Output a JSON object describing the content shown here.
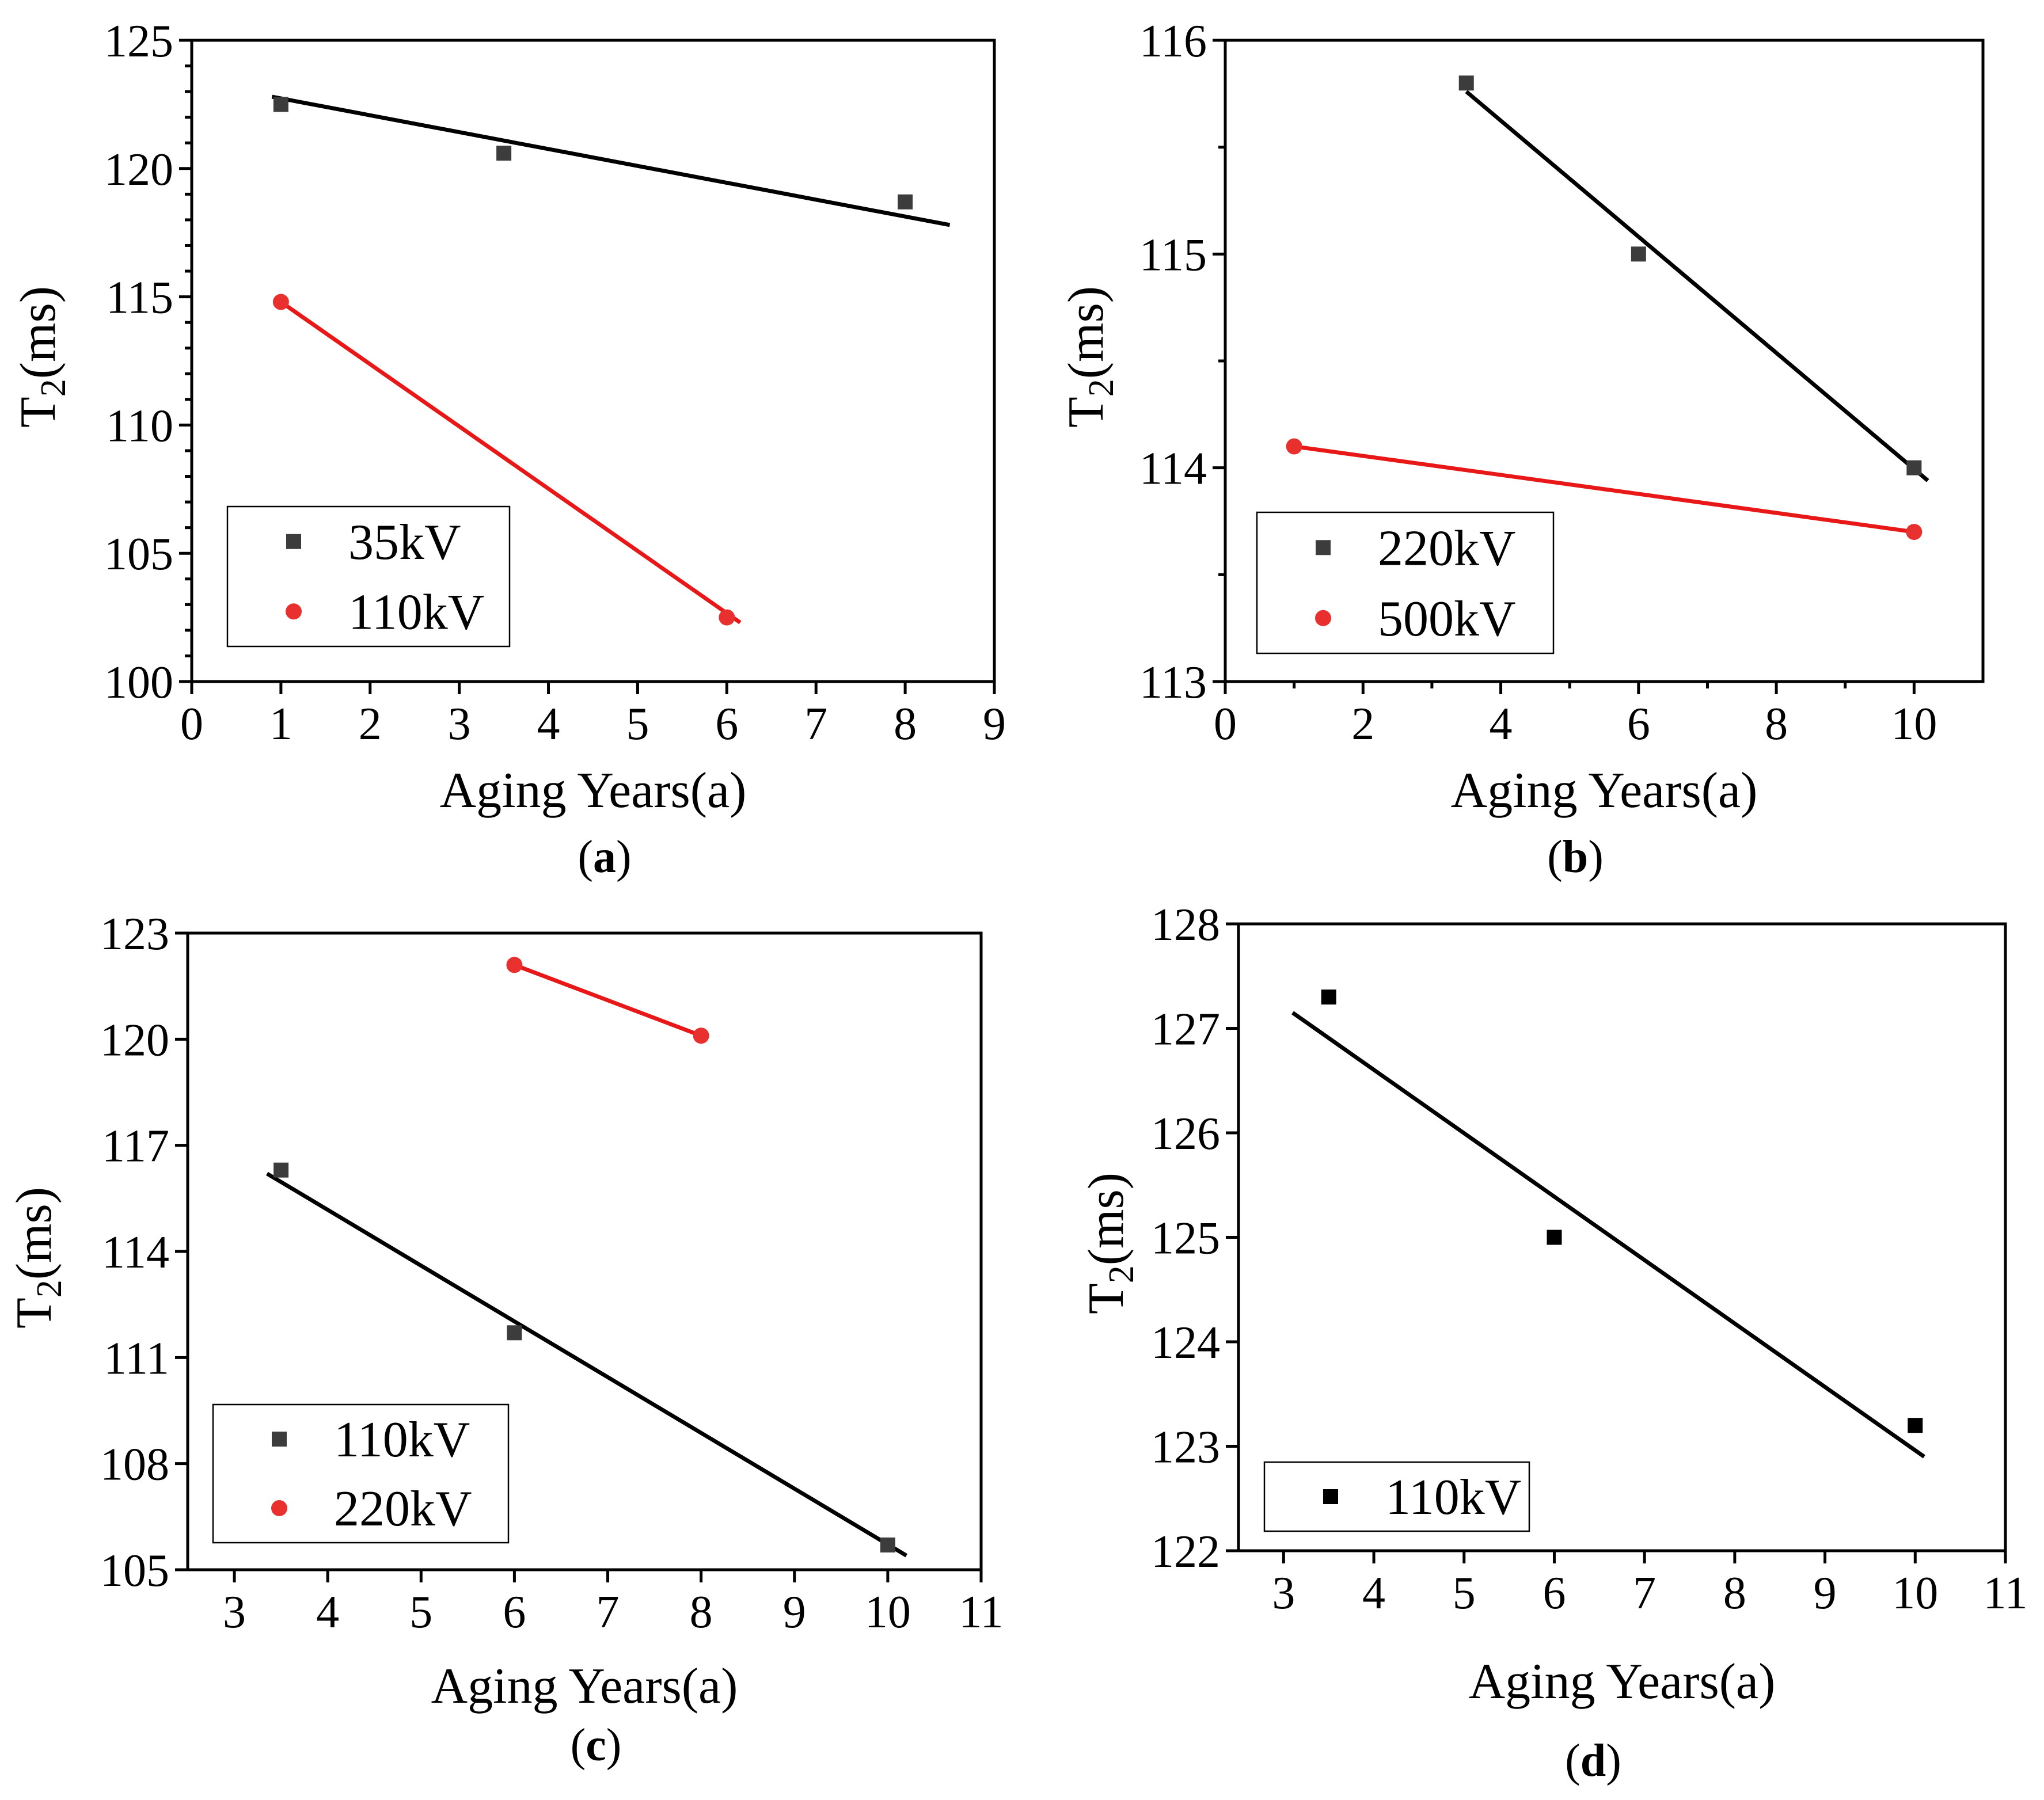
{
  "colors": {
    "black_series": "#3c3c3c",
    "red_series": "#e8302f",
    "fit_black": "#000000",
    "fit_red": "#e81818",
    "axis": "#000000"
  },
  "chart_data": [
    {
      "panel": "a",
      "panel_label": "a",
      "type": "scatter",
      "xlabel": "Aging Years(a)",
      "ylabel_main": "T",
      "ylabel_sub": "2",
      "ylabel_rest": "(ms)",
      "xlim": [
        0,
        9
      ],
      "ylim": [
        100,
        125
      ],
      "xticks": [
        0,
        1,
        2,
        3,
        4,
        5,
        6,
        7,
        8,
        9
      ],
      "yticks": [
        100,
        105,
        110,
        115,
        120,
        125
      ],
      "x_minor": 0,
      "y_minor": 5,
      "legend_position": "bottom-left",
      "series": [
        {
          "name": "35kV",
          "marker": "square",
          "color": "#3c3c3c",
          "x": [
            1,
            3.5,
            8
          ],
          "y": [
            122.5,
            120.6,
            118.7
          ],
          "fit": {
            "x": [
              0.9,
              8.5
            ],
            "y": [
              122.8,
              117.8
            ],
            "color": "#000000"
          }
        },
        {
          "name": "110kV",
          "marker": "circle",
          "color": "#e8302f",
          "x": [
            1,
            6
          ],
          "y": [
            114.8,
            102.5
          ],
          "fit": {
            "x": [
              1,
              6.15
            ],
            "y": [
              114.8,
              102.3
            ],
            "color": "#e81818"
          }
        }
      ]
    },
    {
      "panel": "b",
      "panel_label": "b",
      "type": "scatter",
      "xlabel": "Aging Years(a)",
      "ylabel_main": "T",
      "ylabel_sub": "2",
      "ylabel_rest": "(ms)",
      "xlim": [
        0,
        11
      ],
      "ylim": [
        113,
        116
      ],
      "xticks": [
        0,
        2,
        4,
        6,
        8,
        10
      ],
      "yticks": [
        113,
        114,
        115,
        116
      ],
      "x_minor": 2,
      "y_minor": 2,
      "legend_position": "bottom-left",
      "series": [
        {
          "name": "220kV",
          "marker": "square",
          "color": "#3c3c3c",
          "x": [
            3.5,
            6,
            10
          ],
          "y": [
            115.8,
            115.0,
            114.0
          ],
          "fit": {
            "x": [
              3.5,
              10.2
            ],
            "y": [
              115.76,
              113.94
            ],
            "color": "#000000"
          }
        },
        {
          "name": "500kV",
          "marker": "circle",
          "color": "#e8302f",
          "x": [
            1,
            10
          ],
          "y": [
            114.1,
            113.7
          ],
          "fit": {
            "x": [
              1,
              10
            ],
            "y": [
              114.1,
              113.7
            ],
            "color": "#e81818"
          }
        }
      ]
    },
    {
      "panel": "c",
      "panel_label": "c",
      "type": "scatter",
      "xlabel": "Aging Years(a)",
      "ylabel_main": "T",
      "ylabel_sub": "2",
      "ylabel_rest": "(ms)",
      "xlim": [
        2.5,
        11
      ],
      "ylim": [
        105,
        123
      ],
      "xticks": [
        3,
        4,
        5,
        6,
        7,
        8,
        9,
        10,
        11
      ],
      "yticks": [
        105,
        108,
        111,
        114,
        117,
        120,
        123
      ],
      "x_minor": 0,
      "y_minor": 0,
      "legend_position": "bottom-left",
      "series": [
        {
          "name": "110kV",
          "marker": "square",
          "color": "#3c3c3c",
          "x": [
            3.5,
            6,
            10
          ],
          "y": [
            116.3,
            111.7,
            105.7
          ],
          "fit": {
            "x": [
              3.35,
              10.2
            ],
            "y": [
              116.2,
              105.4
            ],
            "color": "#000000"
          }
        },
        {
          "name": "220kV",
          "marker": "circle",
          "color": "#e8302f",
          "x": [
            6,
            8
          ],
          "y": [
            122.1,
            120.1
          ],
          "fit": {
            "x": [
              6,
              8
            ],
            "y": [
              122.1,
              120.1
            ],
            "color": "#e81818"
          }
        }
      ]
    },
    {
      "panel": "d",
      "panel_label": "d",
      "type": "scatter",
      "xlabel": "Aging Years(a)",
      "ylabel_main": "T",
      "ylabel_sub": "2",
      "ylabel_rest": "(ms)",
      "xlim": [
        2.5,
        11
      ],
      "ylim": [
        122,
        128
      ],
      "xticks": [
        3,
        4,
        5,
        6,
        7,
        8,
        9,
        10,
        11
      ],
      "yticks": [
        122,
        123,
        124,
        125,
        126,
        127,
        128
      ],
      "x_minor": 0,
      "y_minor": 0,
      "legend_position": "bottom-left",
      "series": [
        {
          "name": "110kV",
          "marker": "square",
          "color": "#000000",
          "x": [
            3.5,
            6,
            10
          ],
          "y": [
            127.3,
            125.0,
            123.2
          ],
          "fit": {
            "x": [
              3.1,
              10.1
            ],
            "y": [
              127.15,
              122.9
            ],
            "color": "#000000"
          }
        }
      ]
    }
  ]
}
